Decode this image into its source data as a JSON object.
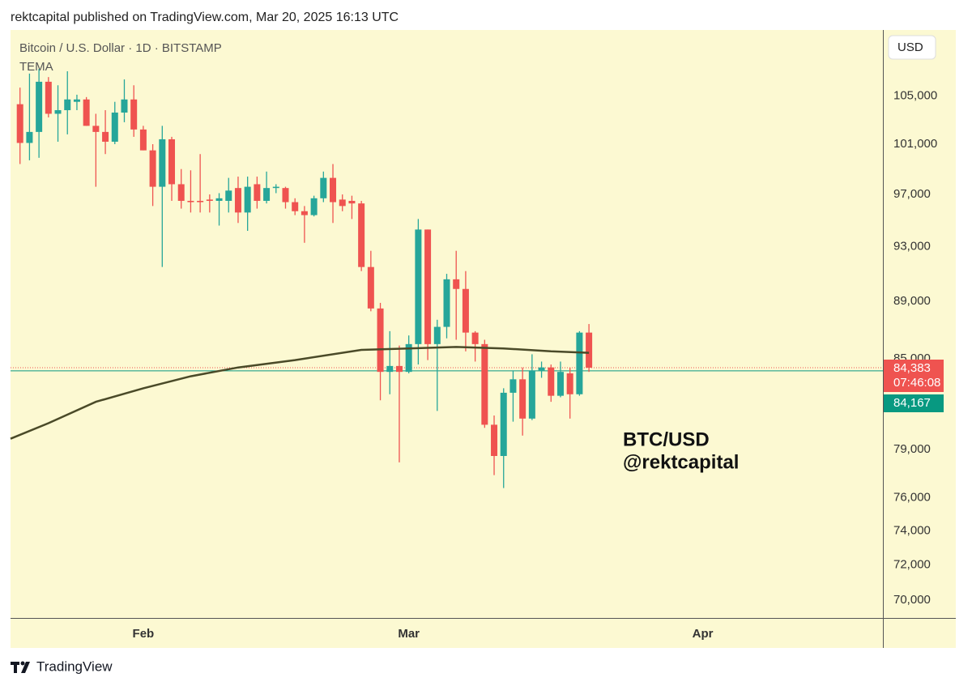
{
  "header": {
    "text": "rektcapital published on TradingView.com, Mar 20, 2025 16:13 UTC"
  },
  "chart_data": {
    "type": "candlestick",
    "title": "Bitcoin / U.S. Dollar · 1D · BITSTAMP",
    "x": [
      19,
      20,
      21,
      22,
      23,
      24,
      25,
      26,
      27,
      28,
      29,
      30,
      31,
      32,
      33,
      34,
      35,
      36,
      37,
      38,
      39,
      40,
      41,
      42,
      43,
      44,
      45,
      46,
      47,
      48,
      49,
      50,
      51,
      52,
      53,
      54,
      55,
      56,
      57,
      58,
      59,
      60,
      61,
      62,
      63,
      64,
      65,
      66,
      67,
      68,
      69,
      70,
      71,
      72,
      73,
      74,
      75,
      76,
      77,
      78,
      79
    ],
    "open": [
      104300,
      101100,
      102000,
      106200,
      103500,
      103800,
      104500,
      104700,
      102500,
      102000,
      101200,
      103600,
      104700,
      102200,
      100500,
      97600,
      101400,
      97800,
      96500,
      96500,
      96600,
      96500,
      96500,
      97500,
      95600,
      97800,
      96500,
      97500,
      97500,
      96400,
      95700,
      95400,
      96700,
      98300,
      96600,
      96500,
      96300,
      91500,
      88500,
      84100,
      84500,
      84100,
      86000,
      94300,
      86000,
      87200,
      90600,
      89900,
      86800,
      86000,
      80600,
      78600,
      82700,
      83600,
      81000,
      84200,
      84400,
      82500,
      84000,
      82600,
      86800
    ],
    "high": [
      105700,
      106900,
      107300,
      106600,
      105900,
      107100,
      105100,
      104900,
      103500,
      103800,
      104500,
      106400,
      105900,
      102500,
      101000,
      102500,
      101600,
      99000,
      98900,
      100200,
      97000,
      97100,
      98300,
      98400,
      98400,
      98400,
      98800,
      97800,
      97600,
      96700,
      96100,
      96900,
      98800,
      99400,
      97000,
      96900,
      96500,
      92700,
      88900,
      86900,
      85900,
      86600,
      95100,
      94300,
      87700,
      91000,
      92700,
      91200,
      86900,
      86300,
      81200,
      83000,
      84200,
      84400,
      85300,
      84800,
      84600,
      84800,
      84400,
      86900,
      87400
    ],
    "low": [
      99400,
      99700,
      99900,
      103200,
      101200,
      101800,
      103800,
      102500,
      97600,
      100200,
      101000,
      102800,
      101600,
      100500,
      96100,
      91500,
      96500,
      95900,
      95600,
      95600,
      95600,
      94600,
      95600,
      94800,
      94200,
      95900,
      96300,
      97100,
      95900,
      95400,
      93300,
      95300,
      96400,
      94800,
      95700,
      95100,
      91200,
      88300,
      82200,
      82600,
      78200,
      84000,
      84600,
      84900,
      81500,
      86400,
      86300,
      85500,
      84800,
      80400,
      77400,
      76600,
      80800,
      79900,
      80900,
      83700,
      82100,
      82400,
      81000,
      82500,
      84100
    ],
    "close": [
      101100,
      102000,
      106200,
      103500,
      103800,
      104700,
      104700,
      102500,
      102000,
      101200,
      103600,
      104700,
      102200,
      100500,
      97600,
      101400,
      97800,
      96500,
      96400,
      96400,
      96500,
      96700,
      97300,
      95600,
      97600,
      96500,
      97500,
      97600,
      96400,
      95700,
      95400,
      96700,
      98300,
      96400,
      96100,
      96300,
      91500,
      88500,
      84100,
      84500,
      84100,
      86000,
      94300,
      86000,
      87200,
      90600,
      89900,
      86800,
      86000,
      80600,
      78600,
      82700,
      83600,
      81000,
      84200,
      84400,
      82500,
      84100,
      82600,
      86800,
      84383
    ],
    "up_color": "#26a69a",
    "down_color": "#ef5350",
    "xlim": [
      18,
      110
    ],
    "xticks": [
      {
        "value": 32,
        "label": "Feb"
      },
      {
        "value": 60,
        "label": "Mar"
      },
      {
        "value": 91,
        "label": "Apr"
      }
    ],
    "ylim": [
      69000,
      110500
    ],
    "log_y": true,
    "yticks": [
      {
        "value": 105000,
        "label": "105,000"
      },
      {
        "value": 101000,
        "label": "101,000"
      },
      {
        "value": 97000,
        "label": "97,000"
      },
      {
        "value": 93000,
        "label": "93,000"
      },
      {
        "value": 89000,
        "label": "89,000"
      },
      {
        "value": 85000,
        "label": "85,000"
      },
      {
        "value": 79000,
        "label": "79,000"
      },
      {
        "value": 76000,
        "label": "76,000"
      },
      {
        "value": 74000,
        "label": "74,000"
      },
      {
        "value": 72000,
        "label": "72,000"
      },
      {
        "value": 70000,
        "label": "70,000"
      }
    ],
    "y_axis_label": "USD",
    "indicator": {
      "name": "TEMA",
      "color": "#4a4a28",
      "x": [
        18,
        22,
        27,
        32,
        37,
        42,
        48,
        55,
        60,
        65,
        70,
        75,
        79
      ],
      "values": [
        79700,
        80700,
        82100,
        83000,
        83800,
        84400,
        84900,
        85600,
        85700,
        85800,
        85700,
        85500,
        85400
      ]
    },
    "price_lines": [
      {
        "value": 84383,
        "label": "84,383",
        "countdown": "07:46:08",
        "color": "#ef5350",
        "style": "dotted"
      },
      {
        "value": 84167,
        "label": "84,167",
        "color": "#089981",
        "style": "solid"
      }
    ],
    "annotations": [
      "BTC/USD",
      "@rektcapital"
    ]
  },
  "footer": {
    "brand": "TradingView"
  }
}
